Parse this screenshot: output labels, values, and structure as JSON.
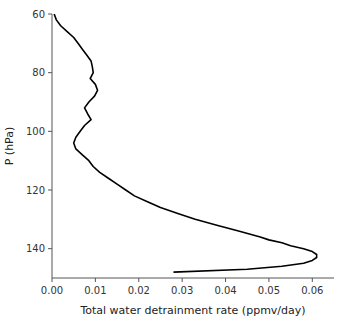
{
  "chart_data": {
    "type": "line",
    "xlabel": "Total water detrainment rate (ppmv/day)",
    "ylabel": "P (hPa)",
    "x": [
      0.0005,
      0.001,
      0.002,
      0.0035,
      0.005,
      0.006,
      0.007,
      0.008,
      0.009,
      0.0093,
      0.0095,
      0.0088,
      0.01,
      0.0105,
      0.0098,
      0.0085,
      0.0075,
      0.0082,
      0.009,
      0.0075,
      0.0065,
      0.0055,
      0.005,
      0.0055,
      0.007,
      0.0085,
      0.0095,
      0.011,
      0.013,
      0.015,
      0.017,
      0.019,
      0.022,
      0.025,
      0.029,
      0.033,
      0.038,
      0.043,
      0.048,
      0.05,
      0.053,
      0.055,
      0.058,
      0.06,
      0.061,
      0.061,
      0.06,
      0.058,
      0.053,
      0.045,
      0.028
    ],
    "series": [
      {
        "color": "#000000",
        "values": [
          60,
          62,
          64,
          66,
          68,
          70,
          72,
          74,
          76,
          78,
          80,
          82,
          84,
          86,
          88,
          90,
          92,
          94,
          96,
          98,
          100,
          102,
          104,
          106,
          108,
          110,
          112,
          114,
          116,
          118,
          120,
          122,
          124,
          126,
          128,
          130,
          132,
          134,
          136,
          137,
          138,
          139,
          140,
          141,
          142,
          143,
          144,
          145,
          146,
          147,
          148
        ]
      }
    ],
    "xlim": [
      0.0,
      0.065
    ],
    "ylim": [
      150,
      60
    ],
    "xticks": [
      {
        "value": 0.0,
        "label": "0.00"
      },
      {
        "value": 0.01,
        "label": "0.01"
      },
      {
        "value": 0.02,
        "label": "0.02"
      },
      {
        "value": 0.03,
        "label": "0.03"
      },
      {
        "value": 0.04,
        "label": "0.04"
      },
      {
        "value": 0.05,
        "label": "0.05"
      },
      {
        "value": 0.06,
        "label": "0.06"
      }
    ],
    "yticks": [
      60,
      80,
      100,
      120,
      140
    ]
  }
}
